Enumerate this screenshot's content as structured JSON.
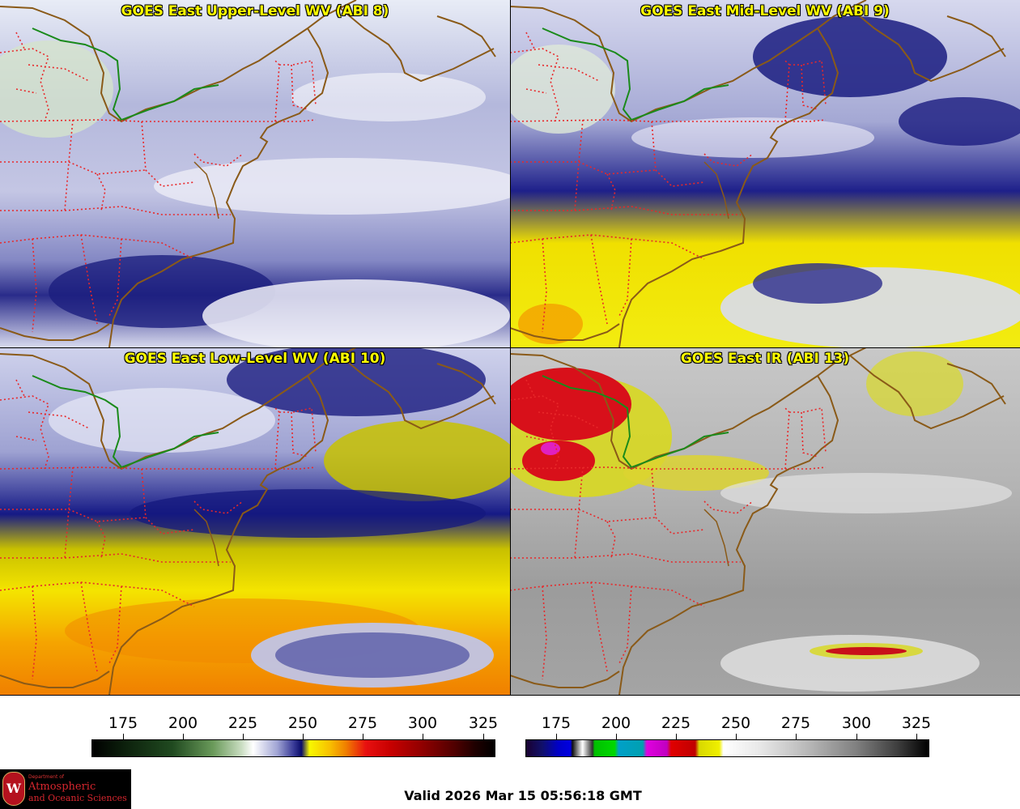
{
  "panels": [
    {
      "title": "GOES East Upper-Level WV (ABI 8)"
    },
    {
      "title": "GOES East Mid-Level WV (ABI 9)"
    },
    {
      "title": "GOES East Low-Level WV (ABI 10)"
    },
    {
      "title": "GOES East IR (ABI 13)"
    }
  ],
  "colorbars": {
    "wv": {
      "ticks": [
        "175",
        "200",
        "225",
        "250",
        "275",
        "300",
        "325"
      ]
    },
    "ir": {
      "ticks": [
        "175",
        "200",
        "225",
        "250",
        "275",
        "300",
        "325"
      ]
    }
  },
  "logo": {
    "line_small": "Department of",
    "line1": "Atmospheric",
    "line2": "and Oceanic Sciences",
    "seal_letter": "W"
  },
  "valid_time": "Valid 2026 Mar 15 05:56:18 GMT",
  "colors": {
    "border_red": "#e8282a",
    "coast": "#7a4a10",
    "canada_border": "#1a7a1a",
    "title_yellow": "#ffff00"
  }
}
